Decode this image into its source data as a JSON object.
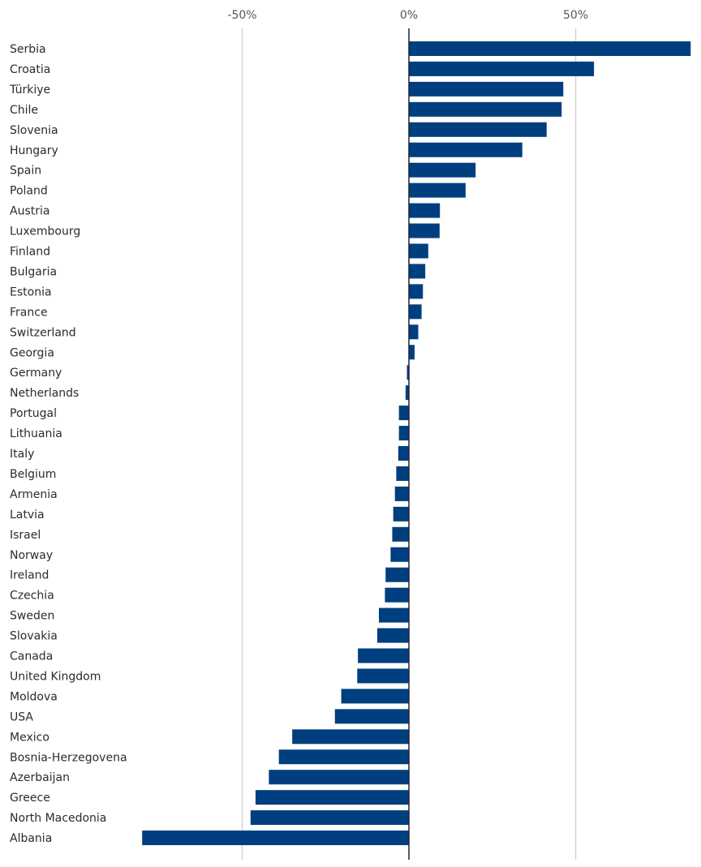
{
  "chart_data": {
    "type": "bar",
    "orientation": "horizontal",
    "title": "",
    "xlabel": "",
    "ylabel": "",
    "xlim": [
      -80,
      85
    ],
    "xticks": [
      -50,
      0,
      50
    ],
    "xtick_labels": [
      "-50%",
      "0%",
      "50%"
    ],
    "grid": true,
    "legend": "none",
    "bar_color": "#003f7f",
    "categories": [
      "Serbia",
      "Croatia",
      "Türkiye",
      "Chile",
      "Slovenia",
      "Hungary",
      "Spain",
      "Poland",
      "Austria",
      "Luxembourg",
      "Finland",
      "Bulgaria",
      "Estonia",
      "France",
      "Switzerland",
      "Georgia",
      "Germany",
      "Netherlands",
      "Portugal",
      "Lithuania",
      "Italy",
      "Belgium",
      "Armenia",
      "Latvia",
      "Israel",
      "Norway",
      "Ireland",
      "Czechia",
      "Sweden",
      "Slovakia",
      "Canada",
      "United Kingdom",
      "Moldova",
      "USA",
      "Mexico",
      "Bosnia-Herzegovena",
      "Azerbaijan",
      "Greece",
      "North Macedonia",
      "Albania"
    ],
    "values": [
      84.5,
      55.5,
      46.3,
      45.8,
      41.3,
      34.0,
      20.0,
      17.0,
      9.3,
      9.2,
      5.8,
      4.9,
      4.2,
      3.8,
      2.8,
      1.7,
      -0.6,
      -1.0,
      -3.0,
      -3.0,
      -3.2,
      -3.8,
      -4.2,
      -4.7,
      -5.0,
      -5.5,
      -7.0,
      -7.2,
      -9.0,
      -9.5,
      -15.3,
      -15.5,
      -20.3,
      -22.2,
      -35.0,
      -39.0,
      -42.0,
      -46.0,
      -47.5,
      -80.0
    ]
  }
}
